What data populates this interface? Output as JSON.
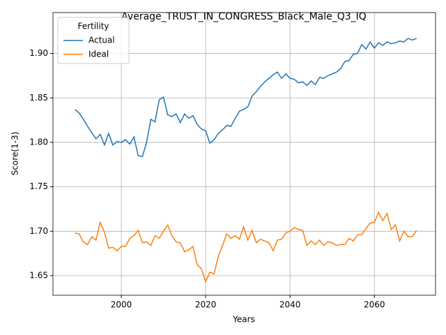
{
  "chart_data": {
    "type": "line",
    "title": "Average_TRUST_IN_CONGRESS_Black_Male_Q3_IQ",
    "xlabel": "Years",
    "ylabel": "Score(1-3)",
    "x": [
      1989,
      1990,
      1991,
      1992,
      1993,
      1994,
      1995,
      1996,
      1997,
      1998,
      1999,
      2000,
      2001,
      2002,
      2003,
      2004,
      2005,
      2006,
      2007,
      2008,
      2009,
      2010,
      2011,
      2012,
      2013,
      2014,
      2015,
      2016,
      2017,
      2018,
      2019,
      2020,
      2021,
      2022,
      2023,
      2024,
      2025,
      2026,
      2027,
      2028,
      2029,
      2030,
      2031,
      2032,
      2033,
      2034,
      2035,
      2036,
      2037,
      2038,
      2039,
      2040,
      2041,
      2042,
      2043,
      2044,
      2045,
      2046,
      2047,
      2048,
      2049,
      2050,
      2051,
      2052,
      2053,
      2054,
      2055,
      2056,
      2057,
      2058,
      2059,
      2060,
      2061,
      2062,
      2063,
      2064,
      2065,
      2066,
      2067,
      2068,
      2069,
      2070
    ],
    "series": [
      {
        "name": "Actual",
        "color": "#1f77b4",
        "values": [
          1.837,
          1.833,
          1.826,
          1.818,
          1.811,
          1.804,
          1.809,
          1.797,
          1.81,
          1.797,
          1.801,
          1.8,
          1.803,
          1.798,
          1.806,
          1.785,
          1.784,
          1.8,
          1.826,
          1.823,
          1.848,
          1.851,
          1.831,
          1.829,
          1.832,
          1.822,
          1.832,
          1.827,
          1.83,
          1.82,
          1.815,
          1.813,
          1.799,
          1.803,
          1.81,
          1.814,
          1.819,
          1.818,
          1.827,
          1.835,
          1.837,
          1.84,
          1.852,
          1.857,
          1.863,
          1.868,
          1.872,
          1.876,
          1.879,
          1.872,
          1.877,
          1.872,
          1.871,
          1.867,
          1.868,
          1.864,
          1.869,
          1.865,
          1.873,
          1.872,
          1.875,
          1.877,
          1.879,
          1.883,
          1.891,
          1.892,
          1.899,
          1.9,
          1.91,
          1.905,
          1.913,
          1.906,
          1.912,
          1.909,
          1.913,
          1.911,
          1.912,
          1.914,
          1.913,
          1.917,
          1.915,
          1.917
        ]
      },
      {
        "name": "Ideal",
        "color": "#ff7f0e",
        "values": [
          1.698,
          1.697,
          1.688,
          1.685,
          1.694,
          1.69,
          1.71,
          1.699,
          1.681,
          1.682,
          1.678,
          1.683,
          1.683,
          1.692,
          1.695,
          1.701,
          1.687,
          1.688,
          1.684,
          1.695,
          1.692,
          1.7,
          1.707,
          1.695,
          1.688,
          1.687,
          1.677,
          1.679,
          1.683,
          1.662,
          1.658,
          1.643,
          1.654,
          1.652,
          1.672,
          1.684,
          1.697,
          1.692,
          1.695,
          1.691,
          1.705,
          1.69,
          1.701,
          1.687,
          1.691,
          1.689,
          1.687,
          1.678,
          1.69,
          1.691,
          1.698,
          1.7,
          1.704,
          1.702,
          1.701,
          1.684,
          1.689,
          1.685,
          1.69,
          1.684,
          1.688,
          1.687,
          1.684,
          1.685,
          1.685,
          1.692,
          1.689,
          1.696,
          1.696,
          1.703,
          1.709,
          1.71,
          1.721,
          1.712,
          1.72,
          1.702,
          1.707,
          1.689,
          1.7,
          1.694,
          1.694,
          1.701
        ]
      }
    ],
    "xlim": [
      1983.8,
      2074.5
    ],
    "ylim": [
      1.628,
      1.946
    ],
    "xticks": [
      2000,
      2020,
      2040,
      2060
    ],
    "yticks": [
      1.65,
      {
        "value": 1.7,
        "label": "1.70"
      },
      1.75,
      {
        "value": 1.8,
        "label": "1.80"
      },
      1.85,
      {
        "value": 1.9,
        "label": "1.90"
      }
    ],
    "grid": true,
    "legend": {
      "title": "Fertility",
      "loc": "upper left"
    }
  }
}
